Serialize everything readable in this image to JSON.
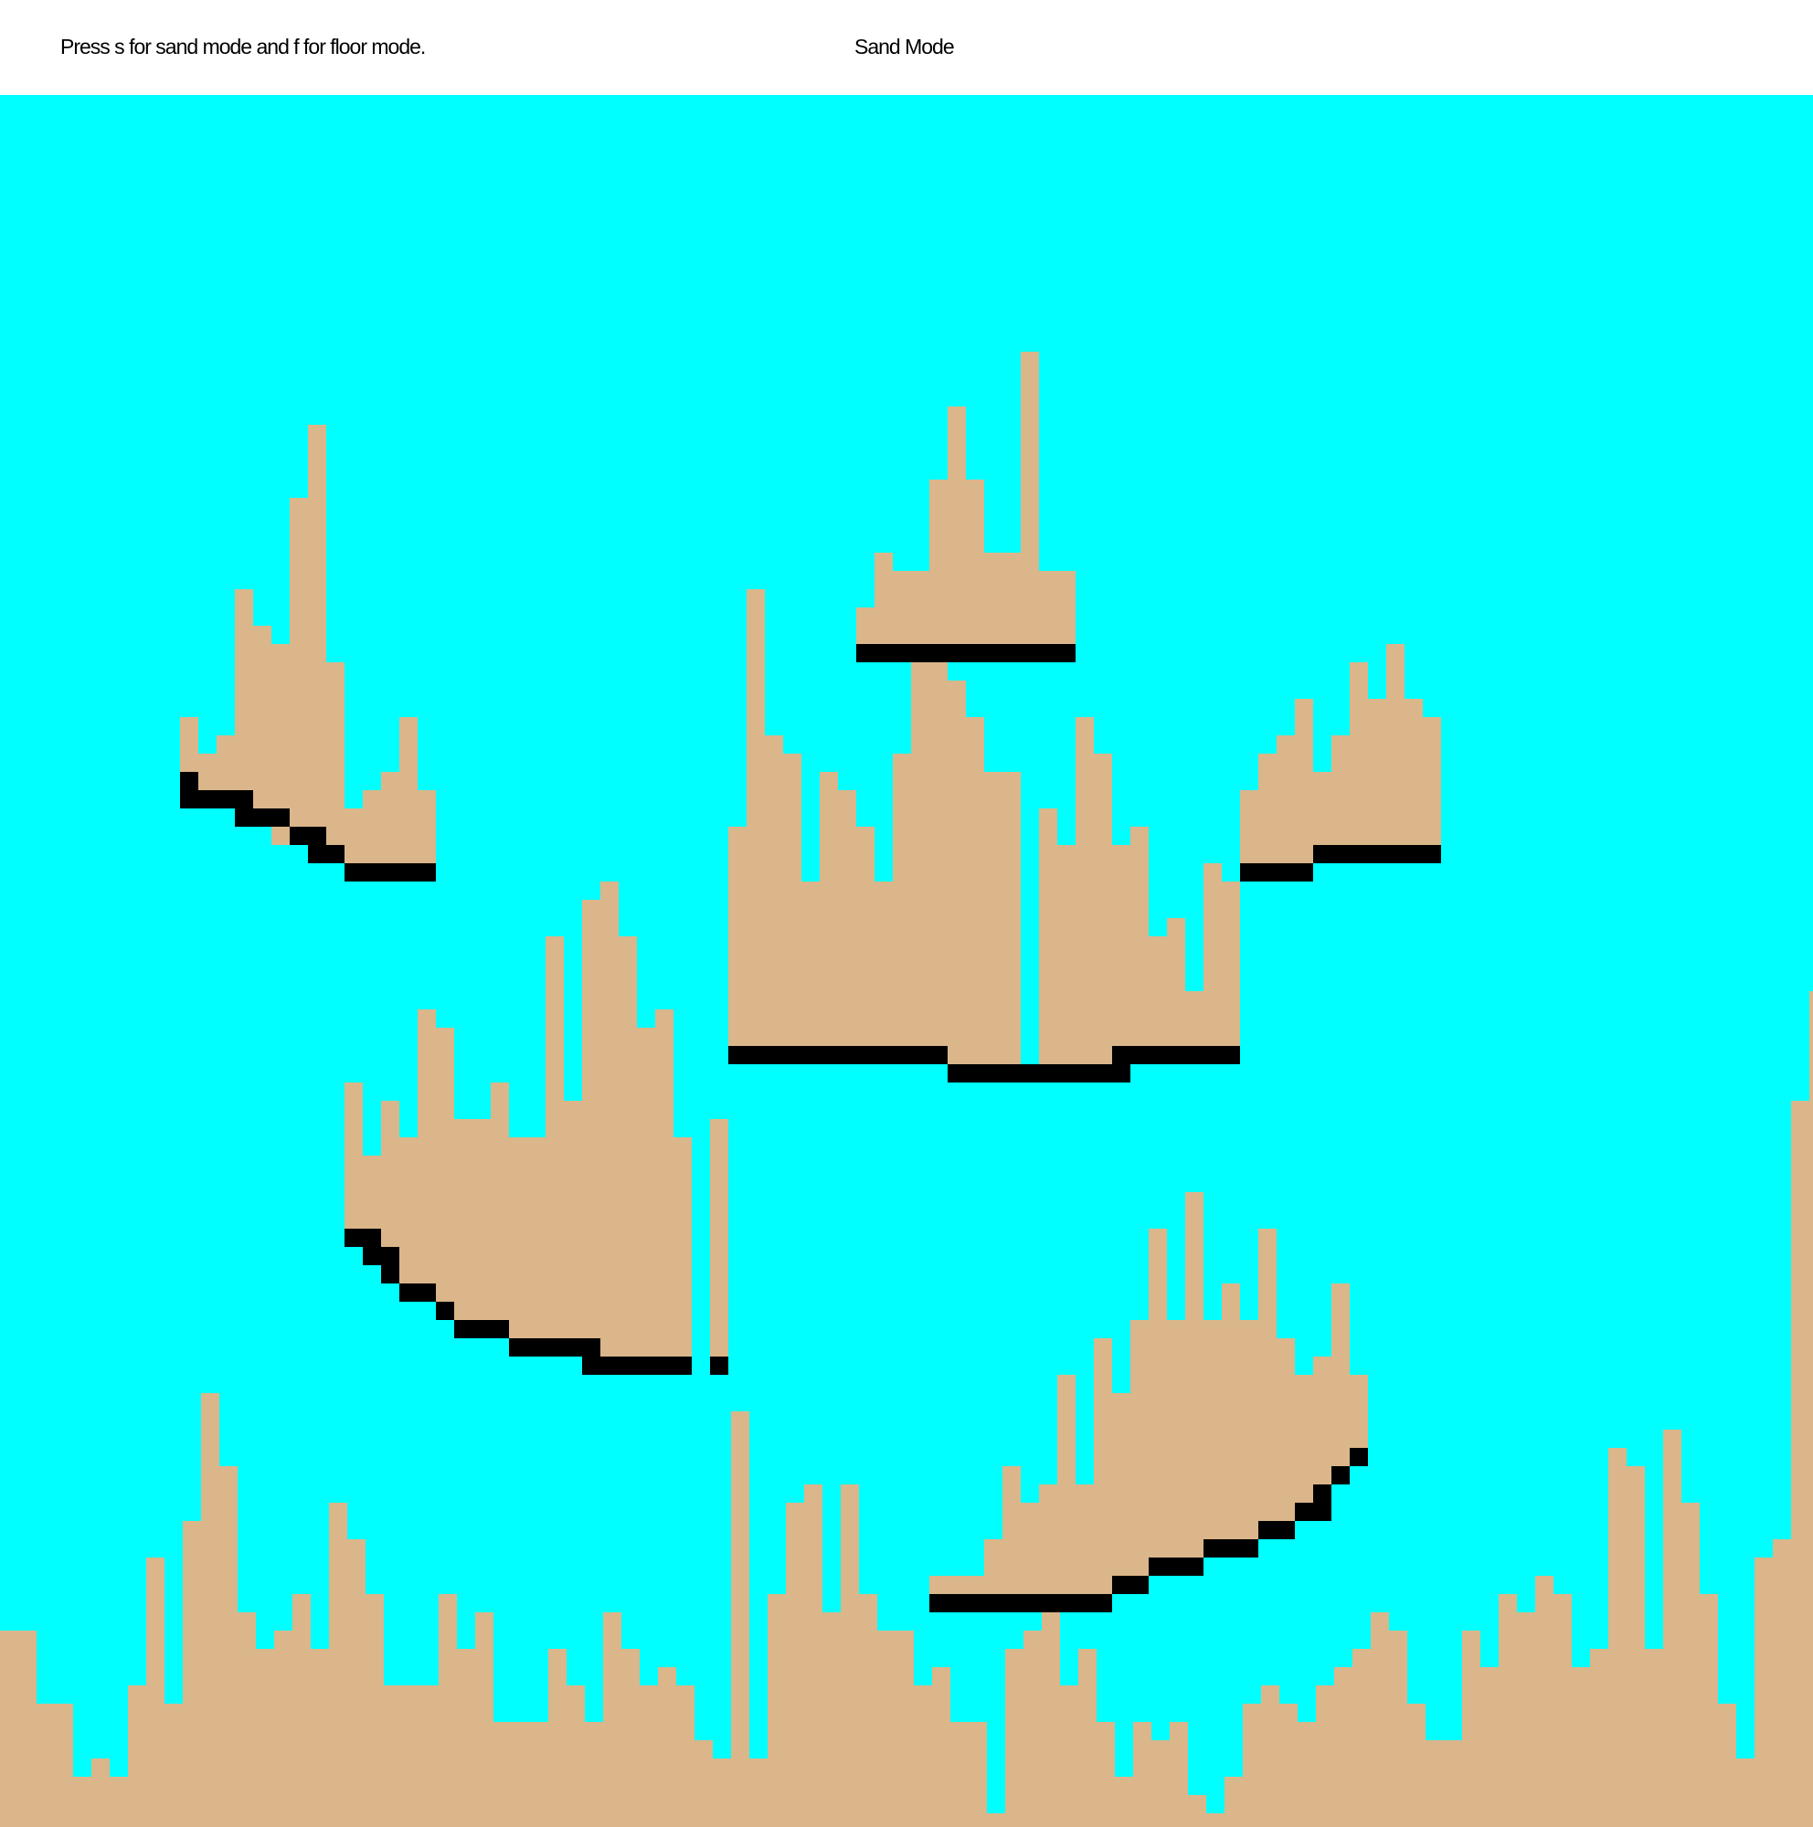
{
  "header": {
    "instructions": "Press s for sand mode and f for floor mode.",
    "mode": "Sand Mode"
  },
  "colors": {
    "water": "#00ffff",
    "sand": "#dbb68a",
    "floor": "#000000",
    "header_bg": "#ffffff"
  }
}
